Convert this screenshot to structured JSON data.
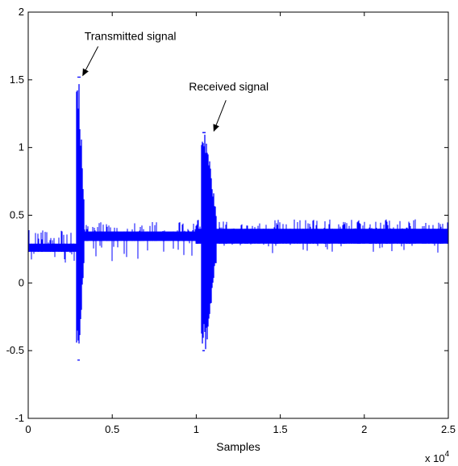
{
  "chart_data": {
    "type": "line",
    "title": "",
    "xlabel": "Samples",
    "ylabel": "",
    "x_exponent_label": "x 10",
    "x_exponent_power": "4",
    "xlim": [
      0,
      2.5
    ],
    "ylim": [
      -1,
      2
    ],
    "x_ticks": [
      "0",
      "0.5",
      "1",
      "1.5",
      "2",
      "2.5"
    ],
    "y_ticks": [
      "-1",
      "-0.5",
      "0",
      "0.5",
      "1",
      "1.5",
      "2"
    ],
    "grid": false,
    "series_color": "#0000ff",
    "baseline_segments": [
      {
        "x_start": 0.0,
        "x_end": 0.29,
        "center": 0.25,
        "lo": 0.23,
        "hi": 0.29,
        "spike_hi": 0.39,
        "spike_lo": 0.15
      },
      {
        "x_start": 0.29,
        "x_end": 1.0,
        "center": 0.35,
        "lo": 0.31,
        "hi": 0.38,
        "spike_hi": 0.45,
        "spike_lo": 0.15
      },
      {
        "x_start": 1.0,
        "x_end": 2.5,
        "center": 0.35,
        "lo": 0.29,
        "hi": 0.4,
        "spike_hi": 0.47,
        "spike_lo": 0.22
      }
    ],
    "bursts": [
      {
        "name": "Transmitted",
        "x_start": 0.29,
        "x_end": 0.33,
        "peak_max": 1.52,
        "peak_min": -0.57
      },
      {
        "name": "Received",
        "x_start": 1.03,
        "x_end": 1.12,
        "peak_max": 1.11,
        "peak_min": -0.5
      }
    ],
    "annotations": [
      {
        "text": "Transmitted signal",
        "x": 0.32,
        "y": 1.52
      },
      {
        "text": "Received signal",
        "x": 1.1,
        "y": 1.11
      }
    ]
  }
}
